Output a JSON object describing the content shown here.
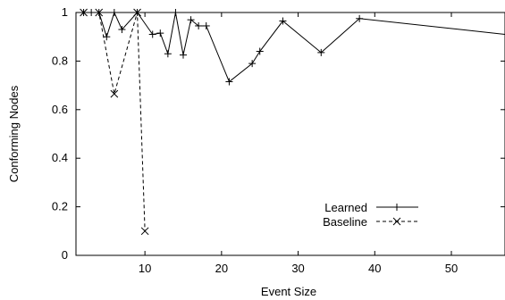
{
  "chart_data": {
    "type": "line",
    "xlabel": "Event Size",
    "ylabel": "Conforming Nodes",
    "xlim": [
      1,
      57
    ],
    "ylim": [
      0,
      1
    ],
    "xticks": [
      10,
      20,
      30,
      40,
      50
    ],
    "yticks": [
      0,
      0.2,
      0.4,
      0.6,
      0.8,
      1
    ],
    "grid": false,
    "legend_position": "bottom-right",
    "series": [
      {
        "name": "Learned",
        "marker": "plus",
        "line_style": "solid",
        "x": [
          2,
          3,
          4,
          5,
          6,
          7,
          9,
          11,
          12,
          13,
          14,
          15,
          16,
          17,
          18,
          21,
          24,
          25,
          28,
          33,
          38,
          57
        ],
        "y": [
          1,
          1,
          1,
          0.9,
          1,
          0.93,
          1,
          0.91,
          0.915,
          0.83,
          1,
          0.825,
          0.97,
          0.945,
          0.945,
          0.715,
          0.79,
          0.84,
          0.965,
          0.835,
          0.975,
          0.91
        ]
      },
      {
        "name": "Baseline",
        "marker": "cross",
        "line_style": "dashed",
        "x": [
          2,
          4,
          6,
          9,
          10
        ],
        "y": [
          1,
          1,
          0.665,
          1,
          0.1
        ]
      }
    ]
  }
}
